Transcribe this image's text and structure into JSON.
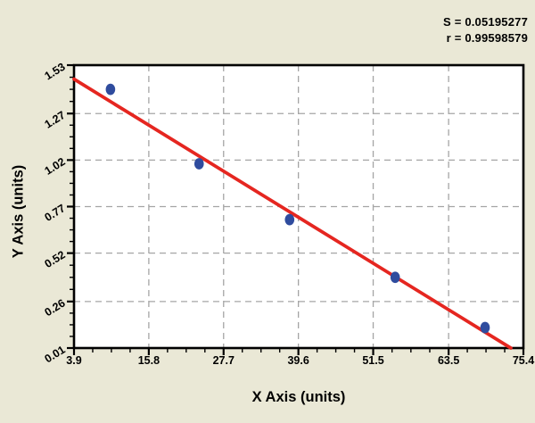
{
  "stats": {
    "s_line": "S = 0.05195277",
    "r_line": "r = 0.99598579"
  },
  "chart_data": {
    "type": "scatter",
    "xlabel": "X Axis (units)",
    "ylabel": "Y Axis (units)",
    "xlim": [
      3.9,
      75.4
    ],
    "ylim": [
      0.01,
      1.53
    ],
    "x_ticks": [
      3.9,
      15.8,
      27.7,
      39.6,
      51.5,
      63.5,
      75.4
    ],
    "y_ticks": [
      0.01,
      0.26,
      0.52,
      0.77,
      1.02,
      1.27,
      1.53
    ],
    "minor_ticks_per_major": 4,
    "grid": true,
    "points": [
      {
        "x": 9.7,
        "y": 1.4
      },
      {
        "x": 23.8,
        "y": 1.0
      },
      {
        "x": 38.2,
        "y": 0.7
      },
      {
        "x": 55.0,
        "y": 0.39
      },
      {
        "x": 69.3,
        "y": 0.12
      }
    ],
    "trendline": {
      "x1": 3.9,
      "y1": 1.455,
      "x2": 73.4,
      "y2": 0.01
    },
    "colors": {
      "background": "#EAE8D6",
      "plot_background": "#FFFFFF",
      "grid": "#A5A5A5",
      "axis": "#000000",
      "trendline": "#E52620",
      "point_fill": "#2F4C9E",
      "text": "#000000"
    }
  }
}
